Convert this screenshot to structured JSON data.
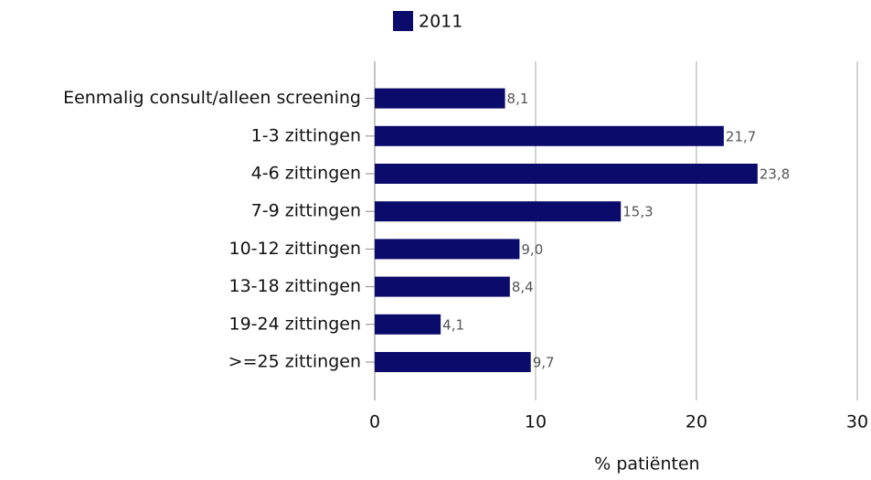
{
  "chart_data": {
    "type": "bar",
    "orientation": "horizontal",
    "categories": [
      "Eenmalig consult/alleen screening",
      "1-3 zittingen",
      "4-6 zittingen",
      "7-9 zittingen",
      "10-12 zittingen",
      "13-18 zittingen",
      "19-24 zittingen",
      ">=25 zittingen"
    ],
    "series": [
      {
        "name": "2011",
        "color": "#0b0b6b",
        "values": [
          8.1,
          21.7,
          23.8,
          15.3,
          9.0,
          8.4,
          4.1,
          9.7
        ],
        "value_labels": [
          "8,1",
          "21,7",
          "23,8",
          "15,3",
          "9,0",
          "8,4",
          "4,1",
          "9,7"
        ]
      }
    ],
    "xlabel": "% patiënten",
    "xlim": [
      0,
      30
    ],
    "xticks": [
      0,
      10,
      20,
      30
    ],
    "grid": true,
    "legend": "top"
  }
}
